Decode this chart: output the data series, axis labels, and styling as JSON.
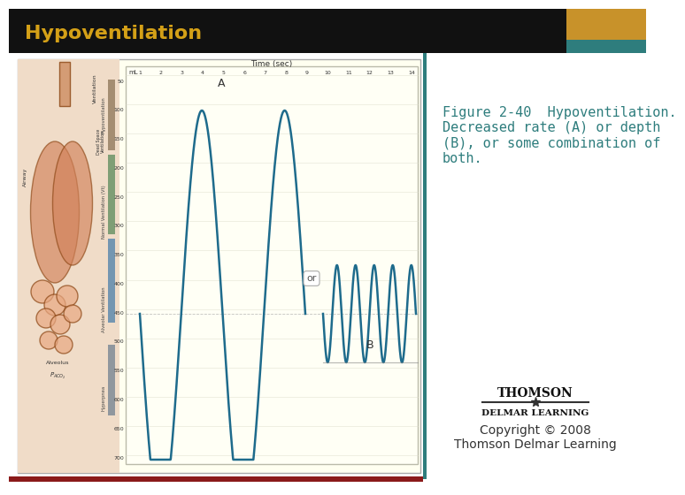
{
  "title": "Hypoventilation",
  "title_color": "#D4A017",
  "header_bg": "#111111",
  "header_accent1": "#C8922A",
  "header_accent2": "#2E7D7D",
  "slide_bg": "#FFFFFF",
  "caption_text": "Figure 2-40  Hypoventilation.\nDecreased rate (A) or depth\n(B), or some combination of\nboth.",
  "caption_color": "#2E7D7D",
  "caption_fontsize": 11,
  "copyright_text": "Copyright © 2008\nThomson Delmar Learning",
  "copyright_fontsize": 10,
  "left_panel_bg": "#FFFFF0",
  "bottom_bar_color": "#8B1A1A",
  "left_side_bar_color": "#2E7D7D"
}
